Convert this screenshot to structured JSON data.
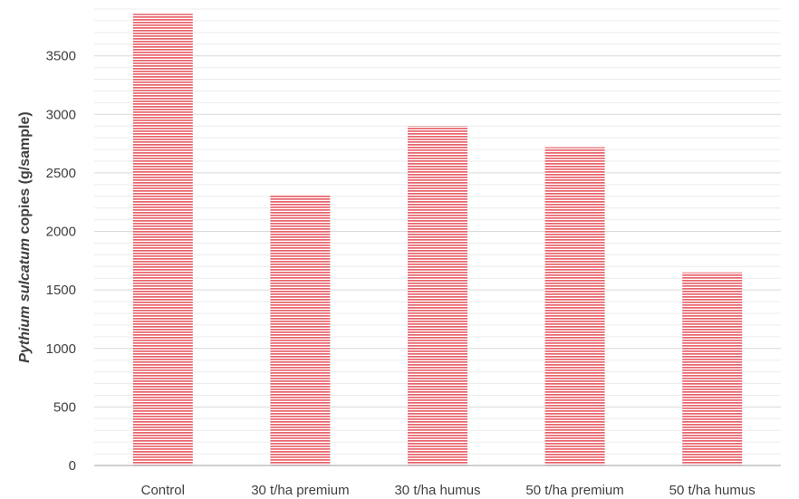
{
  "chart_data": {
    "type": "bar",
    "categories": [
      "Control",
      "30 t/ha premium",
      "30 t/ha humus",
      "50 t/ha premium",
      "50 t/ha humus"
    ],
    "values": [
      3860,
      2310,
      2900,
      2720,
      1650
    ],
    "title": "",
    "xlabel": "",
    "ylabel_italic": "Pythium  sulcatum",
    "ylabel_rest": "  copies (g/sample)",
    "ylim": [
      0,
      3900
    ],
    "yticks": [
      0,
      500,
      1000,
      1500,
      2000,
      2500,
      3000,
      3500
    ],
    "minor_grid_step": 100,
    "grid": true,
    "legend": "none",
    "bar_color": "#e8636b",
    "bar_fill_style": "horizontal-stripes"
  }
}
